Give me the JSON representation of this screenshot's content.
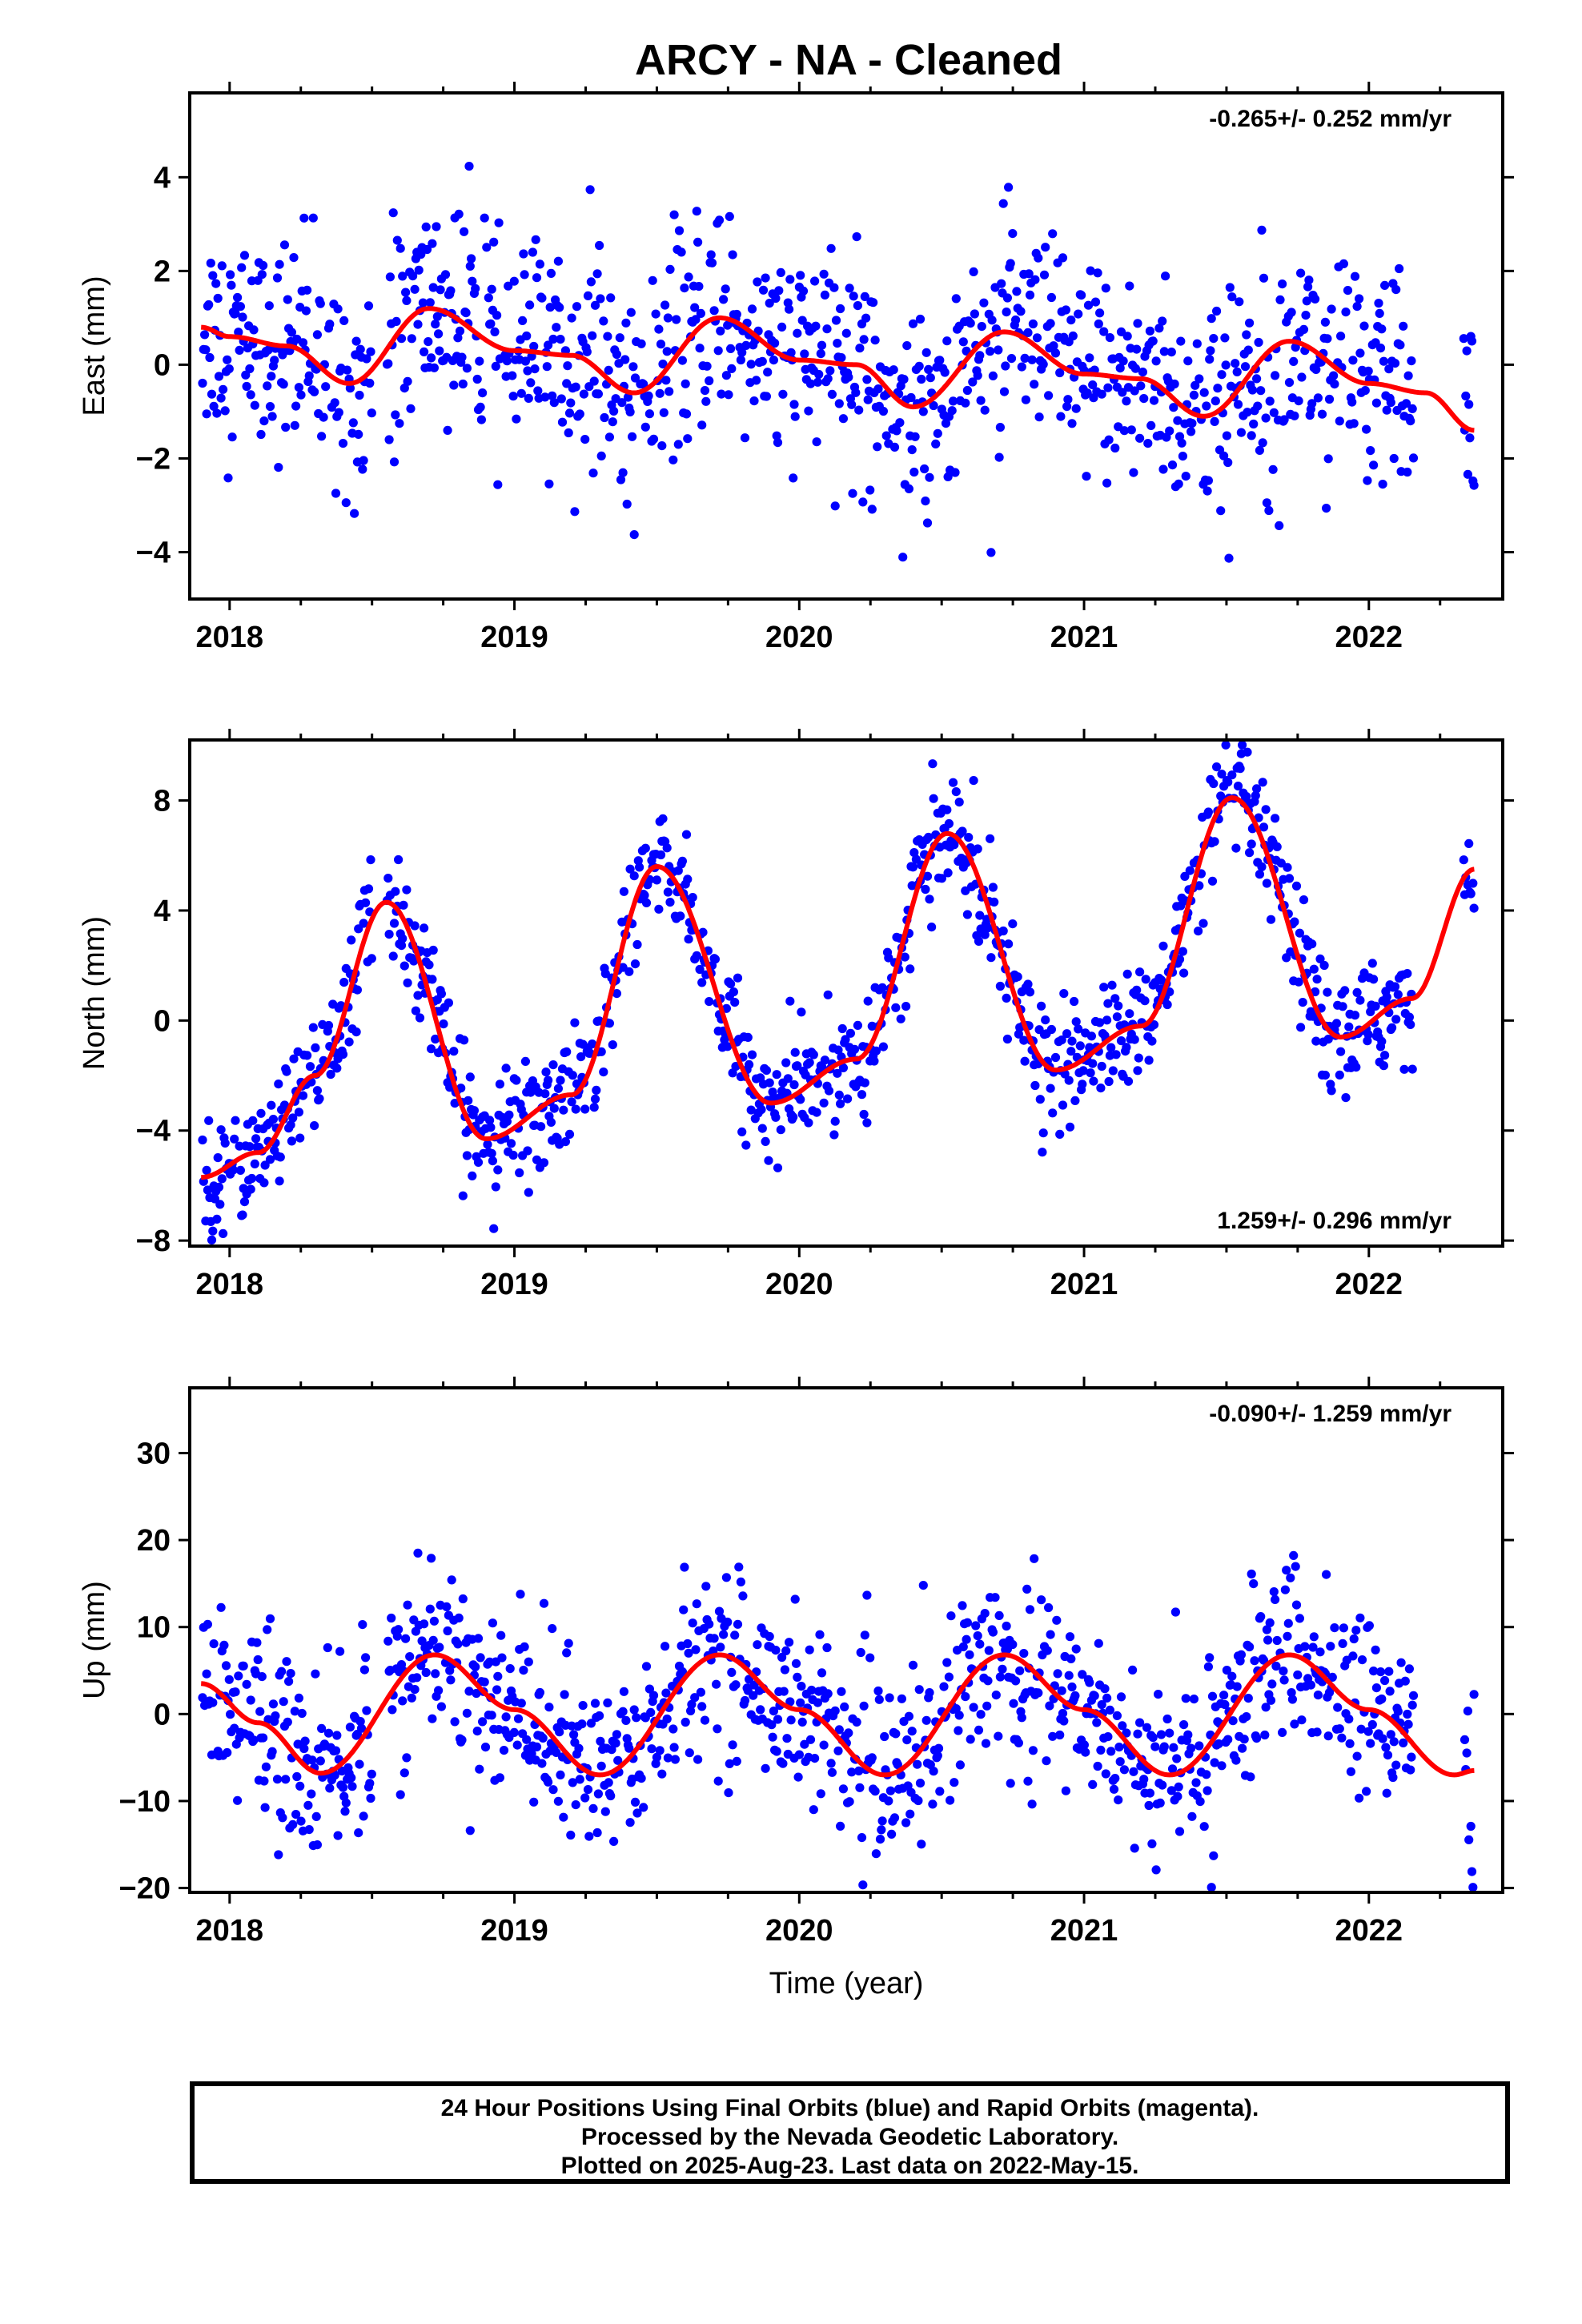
{
  "title": "ARCY  - NA - Cleaned",
  "colors": {
    "points": "#0000ff",
    "fit": "#ff0000",
    "axes": "#000000"
  },
  "chart_data": [
    {
      "type": "scatter",
      "ylabel": "East (mm)",
      "xlabel": "",
      "rate_label": "-0.265+/- 0.252 mm/yr",
      "rate_position": "top-right",
      "xlim": [
        2017.86,
        2022.47
      ],
      "ylim": [
        -5.0,
        5.8
      ],
      "x_ticks": [
        "2018",
        "2019",
        "2020",
        "2021",
        "2022"
      ],
      "y_ticks": [
        -4,
        -2,
        0,
        2,
        4
      ],
      "series": [
        {
          "values": [
            [
              2017.9,
              0.8
            ],
            [
              2018.0,
              0.6
            ],
            [
              2018.2,
              0.4
            ],
            [
              2018.42,
              -0.4
            ],
            [
              2018.7,
              1.2
            ],
            [
              2019.0,
              0.3
            ],
            [
              2019.2,
              0.2
            ],
            [
              2019.42,
              -0.6
            ],
            [
              2019.72,
              1.0
            ],
            [
              2020.0,
              0.1
            ],
            [
              2020.2,
              0.0
            ],
            [
              2020.4,
              -0.9
            ],
            [
              2020.72,
              0.7
            ],
            [
              2021.0,
              -0.2
            ],
            [
              2021.2,
              -0.3
            ],
            [
              2021.42,
              -1.1
            ],
            [
              2021.72,
              0.5
            ],
            [
              2022.0,
              -0.4
            ],
            [
              2022.2,
              -0.6
            ],
            [
              2022.37,
              -1.4
            ]
          ]
        }
      ],
      "grid": false
    },
    {
      "type": "scatter",
      "ylabel": "North (mm)",
      "xlabel": "",
      "rate_label": "1.259+/- 0.296 mm/yr",
      "rate_position": "bottom-right",
      "xlim": [
        2017.86,
        2022.47
      ],
      "ylim": [
        -8.2,
        10.2
      ],
      "x_ticks": [
        "2018",
        "2019",
        "2020",
        "2021",
        "2022"
      ],
      "y_ticks": [
        -8,
        -4,
        0,
        4,
        8
      ],
      "series": [
        {
          "values": [
            [
              2017.9,
              -5.7
            ],
            [
              2018.1,
              -4.8
            ],
            [
              2018.3,
              -2.0
            ],
            [
              2018.55,
              4.3
            ],
            [
              2018.9,
              -4.3
            ],
            [
              2019.2,
              -2.7
            ],
            [
              2019.5,
              5.6
            ],
            [
              2019.9,
              -3.0
            ],
            [
              2020.2,
              -1.4
            ],
            [
              2020.52,
              6.8
            ],
            [
              2020.9,
              -1.8
            ],
            [
              2021.2,
              -0.2
            ],
            [
              2021.52,
              8.1
            ],
            [
              2021.9,
              -0.6
            ],
            [
              2022.15,
              0.8
            ],
            [
              2022.37,
              5.5
            ]
          ]
        }
      ],
      "grid": false
    },
    {
      "type": "scatter",
      "ylabel": "Up (mm)",
      "xlabel": "Time (year)",
      "rate_label": "-0.090+/- 1.259 mm/yr",
      "rate_position": "top-right",
      "xlim": [
        2017.86,
        2022.47
      ],
      "ylim": [
        -20.5,
        37.5
      ],
      "x_ticks": [
        "2018",
        "2019",
        "2020",
        "2021",
        "2022"
      ],
      "y_ticks": [
        -20,
        -10,
        0,
        10,
        20,
        30
      ],
      "series": [
        {
          "values": [
            [
              2017.9,
              3.5
            ],
            [
              2018.1,
              -1.0
            ],
            [
              2018.32,
              -6.8
            ],
            [
              2018.72,
              6.8
            ],
            [
              2019.0,
              0.5
            ],
            [
              2019.3,
              -7.0
            ],
            [
              2019.72,
              6.8
            ],
            [
              2020.0,
              0.5
            ],
            [
              2020.3,
              -7.0
            ],
            [
              2020.72,
              6.8
            ],
            [
              2021.0,
              0.5
            ],
            [
              2021.3,
              -7.0
            ],
            [
              2021.72,
              6.8
            ],
            [
              2022.0,
              0.5
            ],
            [
              2022.3,
              -7.0
            ],
            [
              2022.37,
              -6.5
            ]
          ]
        }
      ],
      "grid": false
    }
  ],
  "caption": {
    "line1": "24 Hour Positions Using Final Orbits (blue) and Rapid Orbits (magenta).",
    "line2": "Processed by the Nevada Geodetic Laboratory.",
    "line3": "Plotted on 2025-Aug-23. Last data on 2022-May-15."
  }
}
